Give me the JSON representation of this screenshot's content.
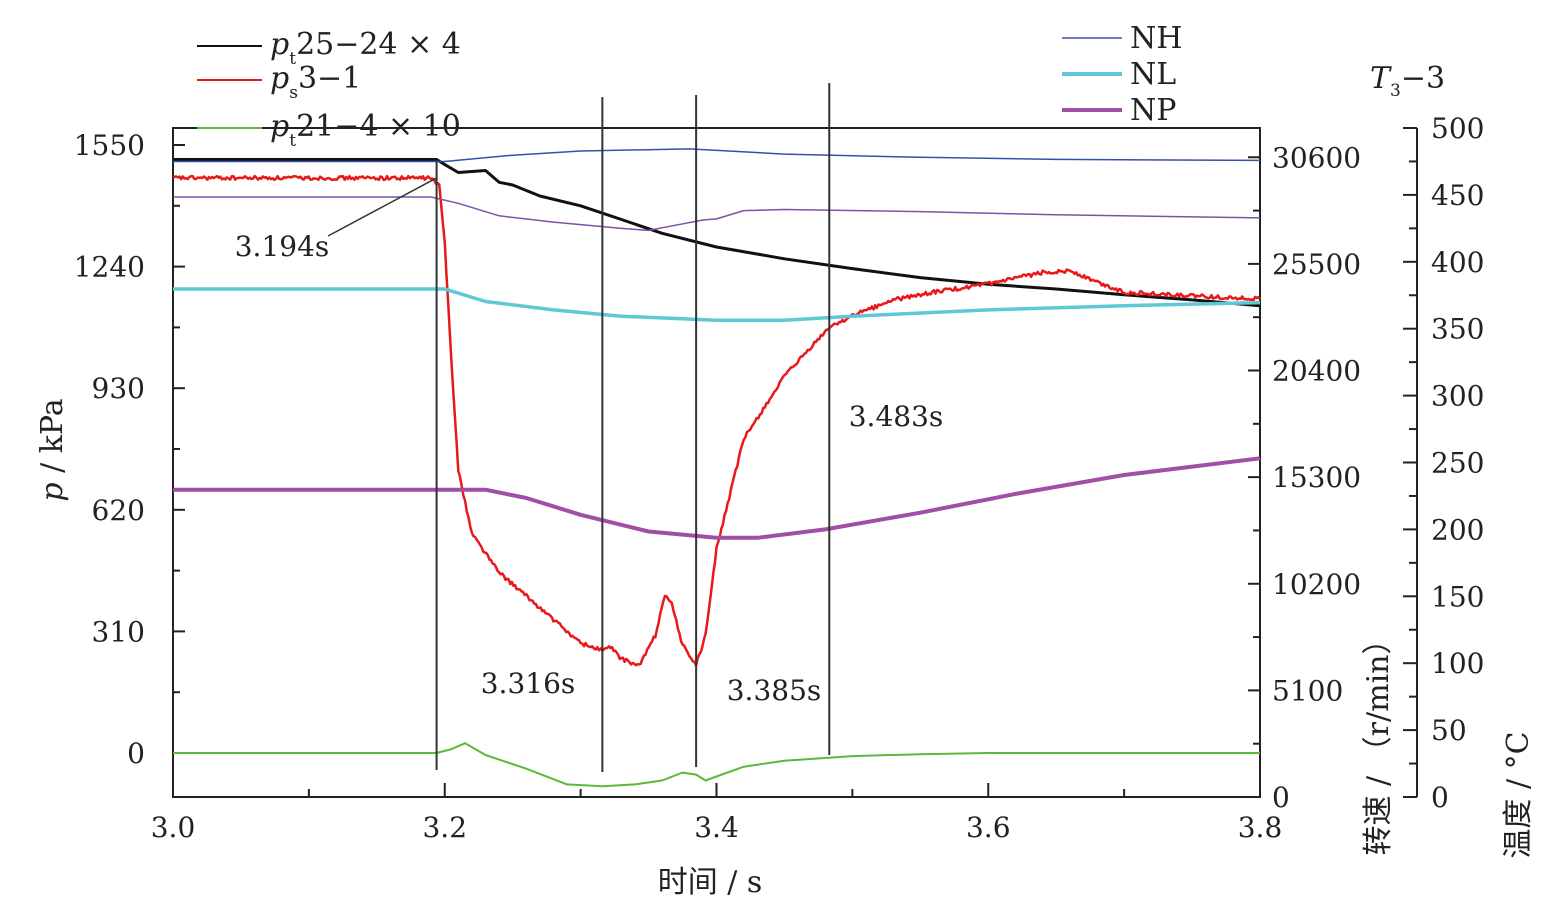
{
  "chart_data": {
    "type": "line",
    "x_axis": {
      "label": "时间 / s",
      "range": [
        3.0,
        3.8
      ],
      "ticks": [
        "3.0",
        "3.2",
        "3.4",
        "3.6",
        "3.8"
      ],
      "tick_values": [
        3.0,
        3.2,
        3.4,
        3.6,
        3.8
      ]
    },
    "y_axis_left": {
      "label_var": "p",
      "label_unit": " / kPa",
      "range": [
        -85,
        1550
      ],
      "ticks": [
        "1550",
        "1240",
        "930",
        "620",
        "310",
        "0"
      ],
      "tick_values": [
        1550,
        1240,
        930,
        620,
        310,
        0
      ]
    },
    "y_axis_speed": {
      "label": "转速 / （r/min）",
      "range": [
        0,
        32000
      ],
      "ticks": [
        "30600",
        "25500",
        "20400",
        "15300",
        "10200",
        "5100",
        "0"
      ],
      "tick_values": [
        30600,
        25500,
        20400,
        15300,
        10200,
        5100,
        0
      ]
    },
    "y_axis_temp": {
      "label": "温度 / °C",
      "series_label": "T",
      "series_label_sub": "3",
      "series_label_rest": "−3",
      "range": [
        0,
        500
      ],
      "ticks": [
        "500",
        "450",
        "400",
        "350",
        "300",
        "250",
        "200",
        "150",
        "100",
        "50",
        "0"
      ],
      "tick_values": [
        500,
        450,
        400,
        350,
        300,
        250,
        200,
        150,
        100,
        50,
        0
      ]
    },
    "legend_left": [
      {
        "var": "p",
        "sub": "t",
        "rest": "25−24 × 4",
        "color": "#111111"
      },
      {
        "var": "p",
        "sub": "s",
        "rest": "3−1",
        "color": "#e8191b"
      },
      {
        "var": "p",
        "sub": "t",
        "rest": "21−4 × 10",
        "color": "#5cb83a"
      }
    ],
    "legend_right": [
      {
        "name": "NH",
        "color": "#3650a8"
      },
      {
        "name": "NL",
        "color": "#5fc8d6"
      },
      {
        "name": "NP",
        "color": "#a04ea6"
      }
    ],
    "annotations": [
      {
        "text": "3.194s",
        "x": 3.194
      },
      {
        "text": "3.316s",
        "x": 3.316
      },
      {
        "text": "3.385s",
        "x": 3.385
      },
      {
        "text": "3.483s",
        "x": 3.483
      }
    ],
    "series": [
      {
        "name": "pt25-24 × 4",
        "axis": "left",
        "color": "#111111",
        "width": 3,
        "noise": 0,
        "points": [
          [
            3.0,
            1513
          ],
          [
            3.194,
            1513
          ],
          [
            3.2,
            1500
          ],
          [
            3.21,
            1480
          ],
          [
            3.23,
            1485
          ],
          [
            3.24,
            1455
          ],
          [
            3.25,
            1448
          ],
          [
            3.27,
            1420
          ],
          [
            3.3,
            1395
          ],
          [
            3.33,
            1360
          ],
          [
            3.36,
            1325
          ],
          [
            3.4,
            1290
          ],
          [
            3.45,
            1260
          ],
          [
            3.5,
            1235
          ],
          [
            3.55,
            1212
          ],
          [
            3.6,
            1195
          ],
          [
            3.65,
            1183
          ],
          [
            3.7,
            1168
          ],
          [
            3.75,
            1155
          ],
          [
            3.8,
            1140
          ]
        ]
      },
      {
        "name": "ps3-1",
        "axis": "left",
        "color": "#e8191b",
        "width": 2.5,
        "noise": 5,
        "points": [
          [
            3.0,
            1466
          ],
          [
            3.19,
            1466
          ],
          [
            3.196,
            1445
          ],
          [
            3.2,
            1300
          ],
          [
            3.205,
            1000
          ],
          [
            3.21,
            720
          ],
          [
            3.22,
            560
          ],
          [
            3.24,
            460
          ],
          [
            3.26,
            400
          ],
          [
            3.28,
            340
          ],
          [
            3.3,
            280
          ],
          [
            3.316,
            262
          ],
          [
            3.322,
            270
          ],
          [
            3.33,
            240
          ],
          [
            3.343,
            222
          ],
          [
            3.355,
            300
          ],
          [
            3.362,
            405
          ],
          [
            3.367,
            380
          ],
          [
            3.375,
            275
          ],
          [
            3.385,
            225
          ],
          [
            3.392,
            300
          ],
          [
            3.4,
            520
          ],
          [
            3.42,
            800
          ],
          [
            3.45,
            960
          ],
          [
            3.483,
            1085
          ],
          [
            3.5,
            1115
          ],
          [
            3.53,
            1155
          ],
          [
            3.56,
            1175
          ],
          [
            3.6,
            1195
          ],
          [
            3.64,
            1225
          ],
          [
            3.66,
            1230
          ],
          [
            3.68,
            1200
          ],
          [
            3.7,
            1175
          ],
          [
            3.75,
            1165
          ],
          [
            3.8,
            1158
          ]
        ]
      },
      {
        "name": "pt21-4 × 10",
        "axis": "left",
        "color": "#5cb83a",
        "width": 2,
        "noise": 0,
        "points": [
          [
            3.0,
            0
          ],
          [
            3.194,
            0
          ],
          [
            3.205,
            10
          ],
          [
            3.215,
            25
          ],
          [
            3.23,
            -5
          ],
          [
            3.26,
            -40
          ],
          [
            3.29,
            -80
          ],
          [
            3.316,
            -85
          ],
          [
            3.34,
            -80
          ],
          [
            3.36,
            -70
          ],
          [
            3.375,
            -50
          ],
          [
            3.385,
            -55
          ],
          [
            3.392,
            -70
          ],
          [
            3.4,
            -60
          ],
          [
            3.42,
            -35
          ],
          [
            3.45,
            -20
          ],
          [
            3.5,
            -8
          ],
          [
            3.55,
            -3
          ],
          [
            3.6,
            0
          ],
          [
            3.8,
            0
          ]
        ]
      },
      {
        "name": "NH",
        "axis": "speed",
        "color": "#3650a8",
        "width": 1.5,
        "noise": 0,
        "points": [
          [
            3.0,
            30400
          ],
          [
            3.2,
            30400
          ],
          [
            3.25,
            30700
          ],
          [
            3.3,
            30900
          ],
          [
            3.38,
            31000
          ],
          [
            3.45,
            30750
          ],
          [
            3.55,
            30600
          ],
          [
            3.65,
            30500
          ],
          [
            3.8,
            30450
          ]
        ]
      },
      {
        "name": "NH-lower",
        "axis": "speed",
        "color": "#7b52a8",
        "width": 1.5,
        "noise": 0,
        "points": [
          [
            3.0,
            28700
          ],
          [
            3.19,
            28700
          ],
          [
            3.21,
            28400
          ],
          [
            3.24,
            27800
          ],
          [
            3.28,
            27500
          ],
          [
            3.33,
            27200
          ],
          [
            3.35,
            27100
          ],
          [
            3.37,
            27350
          ],
          [
            3.39,
            27600
          ],
          [
            3.4,
            27650
          ],
          [
            3.42,
            28050
          ],
          [
            3.45,
            28100
          ],
          [
            3.55,
            28000
          ],
          [
            3.65,
            27850
          ],
          [
            3.8,
            27700
          ]
        ]
      },
      {
        "name": "NL",
        "axis": "speed",
        "color": "#5fc8d6",
        "width": 3.5,
        "noise": 0,
        "points": [
          [
            3.0,
            24300
          ],
          [
            3.2,
            24300
          ],
          [
            3.23,
            23700
          ],
          [
            3.28,
            23300
          ],
          [
            3.33,
            23000
          ],
          [
            3.4,
            22800
          ],
          [
            3.45,
            22800
          ],
          [
            3.5,
            23000
          ],
          [
            3.6,
            23300
          ],
          [
            3.7,
            23500
          ],
          [
            3.8,
            23650
          ]
        ]
      },
      {
        "name": "NP",
        "axis": "speed",
        "color": "#a04ea6",
        "width": 4,
        "noise": 0,
        "points": [
          [
            3.0,
            14700
          ],
          [
            3.23,
            14700
          ],
          [
            3.26,
            14300
          ],
          [
            3.3,
            13500
          ],
          [
            3.35,
            12700
          ],
          [
            3.4,
            12400
          ],
          [
            3.43,
            12400
          ],
          [
            3.48,
            12800
          ],
          [
            3.55,
            13600
          ],
          [
            3.62,
            14500
          ],
          [
            3.7,
            15400
          ],
          [
            3.8,
            16200
          ]
        ]
      }
    ]
  }
}
